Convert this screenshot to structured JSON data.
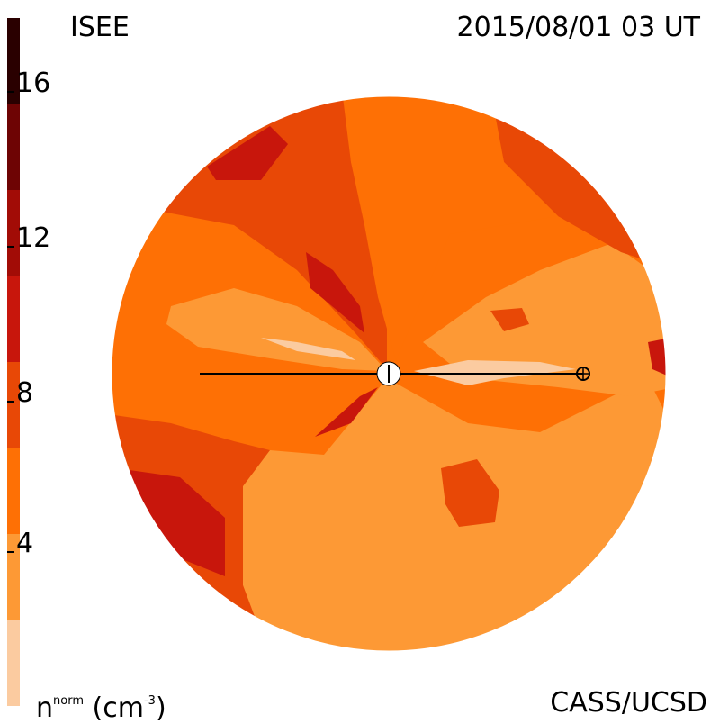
{
  "header": {
    "title_left": "ISEE",
    "title_right": "2015/08/01 03 UT"
  },
  "footer": {
    "credit": "CASS/UCSD",
    "units_prefix": "n",
    "units_sup": "norm",
    "units_suffix": " (cm",
    "units_exp": "-3",
    "units_close": ")"
  },
  "colorbar": {
    "ticks": [
      "16",
      "12",
      "8",
      "4"
    ],
    "levels": [
      {
        "range": "0-2",
        "color": "#fbcba0"
      },
      {
        "range": "2-6",
        "color": "#fd9935"
      },
      {
        "range": "6-8",
        "color": "#fe7005"
      },
      {
        "range": "8-10",
        "color": "#e84806"
      },
      {
        "range": "10-12",
        "color": "#c8160c"
      },
      {
        "range": "12-14",
        "color": "#a20c06"
      },
      {
        "range": "14-16",
        "color": "#6e0404"
      },
      {
        "range": "16-18",
        "color": "#2a0000"
      }
    ]
  },
  "map": {
    "background_color": "#fe7005",
    "sun_color": "#ffffff",
    "earth_symbol": "⊕",
    "line_color": "#000000"
  }
}
